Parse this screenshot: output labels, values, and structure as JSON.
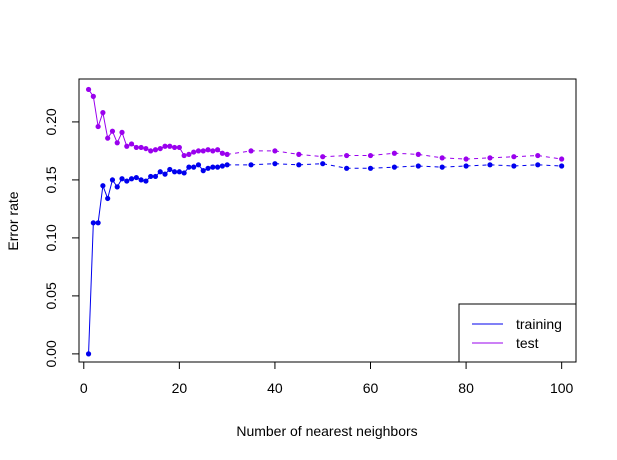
{
  "chart_data": {
    "type": "line",
    "title": "",
    "xlabel": "Number of nearest neighbors",
    "ylabel": "Error rate",
    "xlim": [
      -1,
      103
    ],
    "ylim": [
      -0.007,
      0.237
    ],
    "xticks": [
      "0",
      "20",
      "40",
      "60",
      "80",
      "100"
    ],
    "xtick_values": [
      0,
      20,
      40,
      60,
      80,
      100
    ],
    "yticks": [
      "0.00",
      "0.05",
      "0.10",
      "0.15",
      "0.20"
    ],
    "ytick_values": [
      0.0,
      0.05,
      0.1,
      0.15,
      0.2
    ],
    "grid": false,
    "legend_position": "bottom-right",
    "x": [
      1,
      2,
      3,
      4,
      5,
      6,
      7,
      8,
      9,
      10,
      11,
      12,
      13,
      14,
      15,
      16,
      17,
      18,
      19,
      20,
      21,
      22,
      23,
      24,
      25,
      26,
      27,
      28,
      29,
      30,
      35,
      40,
      45,
      50,
      55,
      60,
      65,
      70,
      75,
      80,
      85,
      90,
      95,
      100
    ],
    "series": [
      {
        "name": "training",
        "color": "#0000ee",
        "values": [
          0.0,
          0.113,
          0.113,
          0.145,
          0.134,
          0.15,
          0.144,
          0.151,
          0.149,
          0.151,
          0.152,
          0.15,
          0.149,
          0.153,
          0.153,
          0.157,
          0.155,
          0.159,
          0.157,
          0.157,
          0.156,
          0.161,
          0.161,
          0.163,
          0.158,
          0.16,
          0.161,
          0.161,
          0.162,
          0.163,
          0.163,
          0.164,
          0.163,
          0.164,
          0.16,
          0.16,
          0.161,
          0.162,
          0.161,
          0.162,
          0.163,
          0.162,
          0.163,
          0.162
        ]
      },
      {
        "name": "test",
        "color": "#9a00ee",
        "values": [
          0.228,
          0.222,
          0.196,
          0.208,
          0.186,
          0.192,
          0.182,
          0.191,
          0.179,
          0.181,
          0.178,
          0.178,
          0.177,
          0.175,
          0.176,
          0.177,
          0.179,
          0.179,
          0.178,
          0.178,
          0.171,
          0.172,
          0.174,
          0.175,
          0.175,
          0.176,
          0.175,
          0.176,
          0.173,
          0.172,
          0.175,
          0.175,
          0.172,
          0.17,
          0.171,
          0.171,
          0.173,
          0.172,
          0.169,
          0.168,
          0.169,
          0.17,
          0.171,
          0.168
        ]
      }
    ]
  }
}
